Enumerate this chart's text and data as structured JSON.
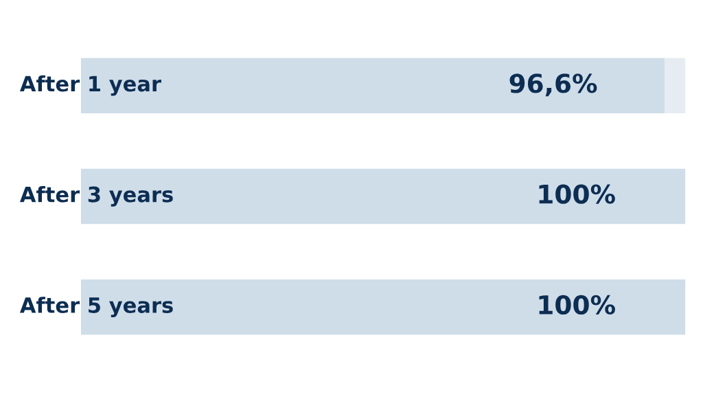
{
  "chart_data": {
    "type": "bar",
    "orientation": "horizontal",
    "stacked": true,
    "categories": [
      "After 1 year",
      "After 3 years",
      "After 5 years"
    ],
    "series": [
      {
        "color": "#cfdde9",
        "values": [
          96.6,
          100,
          100
        ],
        "value_labels": [
          "96,6%",
          "100%",
          "100%"
        ]
      },
      {
        "color": "#e6ecf2",
        "values": [
          3.4,
          0,
          0
        ]
      }
    ],
    "grid": false,
    "legend": false,
    "tick_labels": false
  }
}
